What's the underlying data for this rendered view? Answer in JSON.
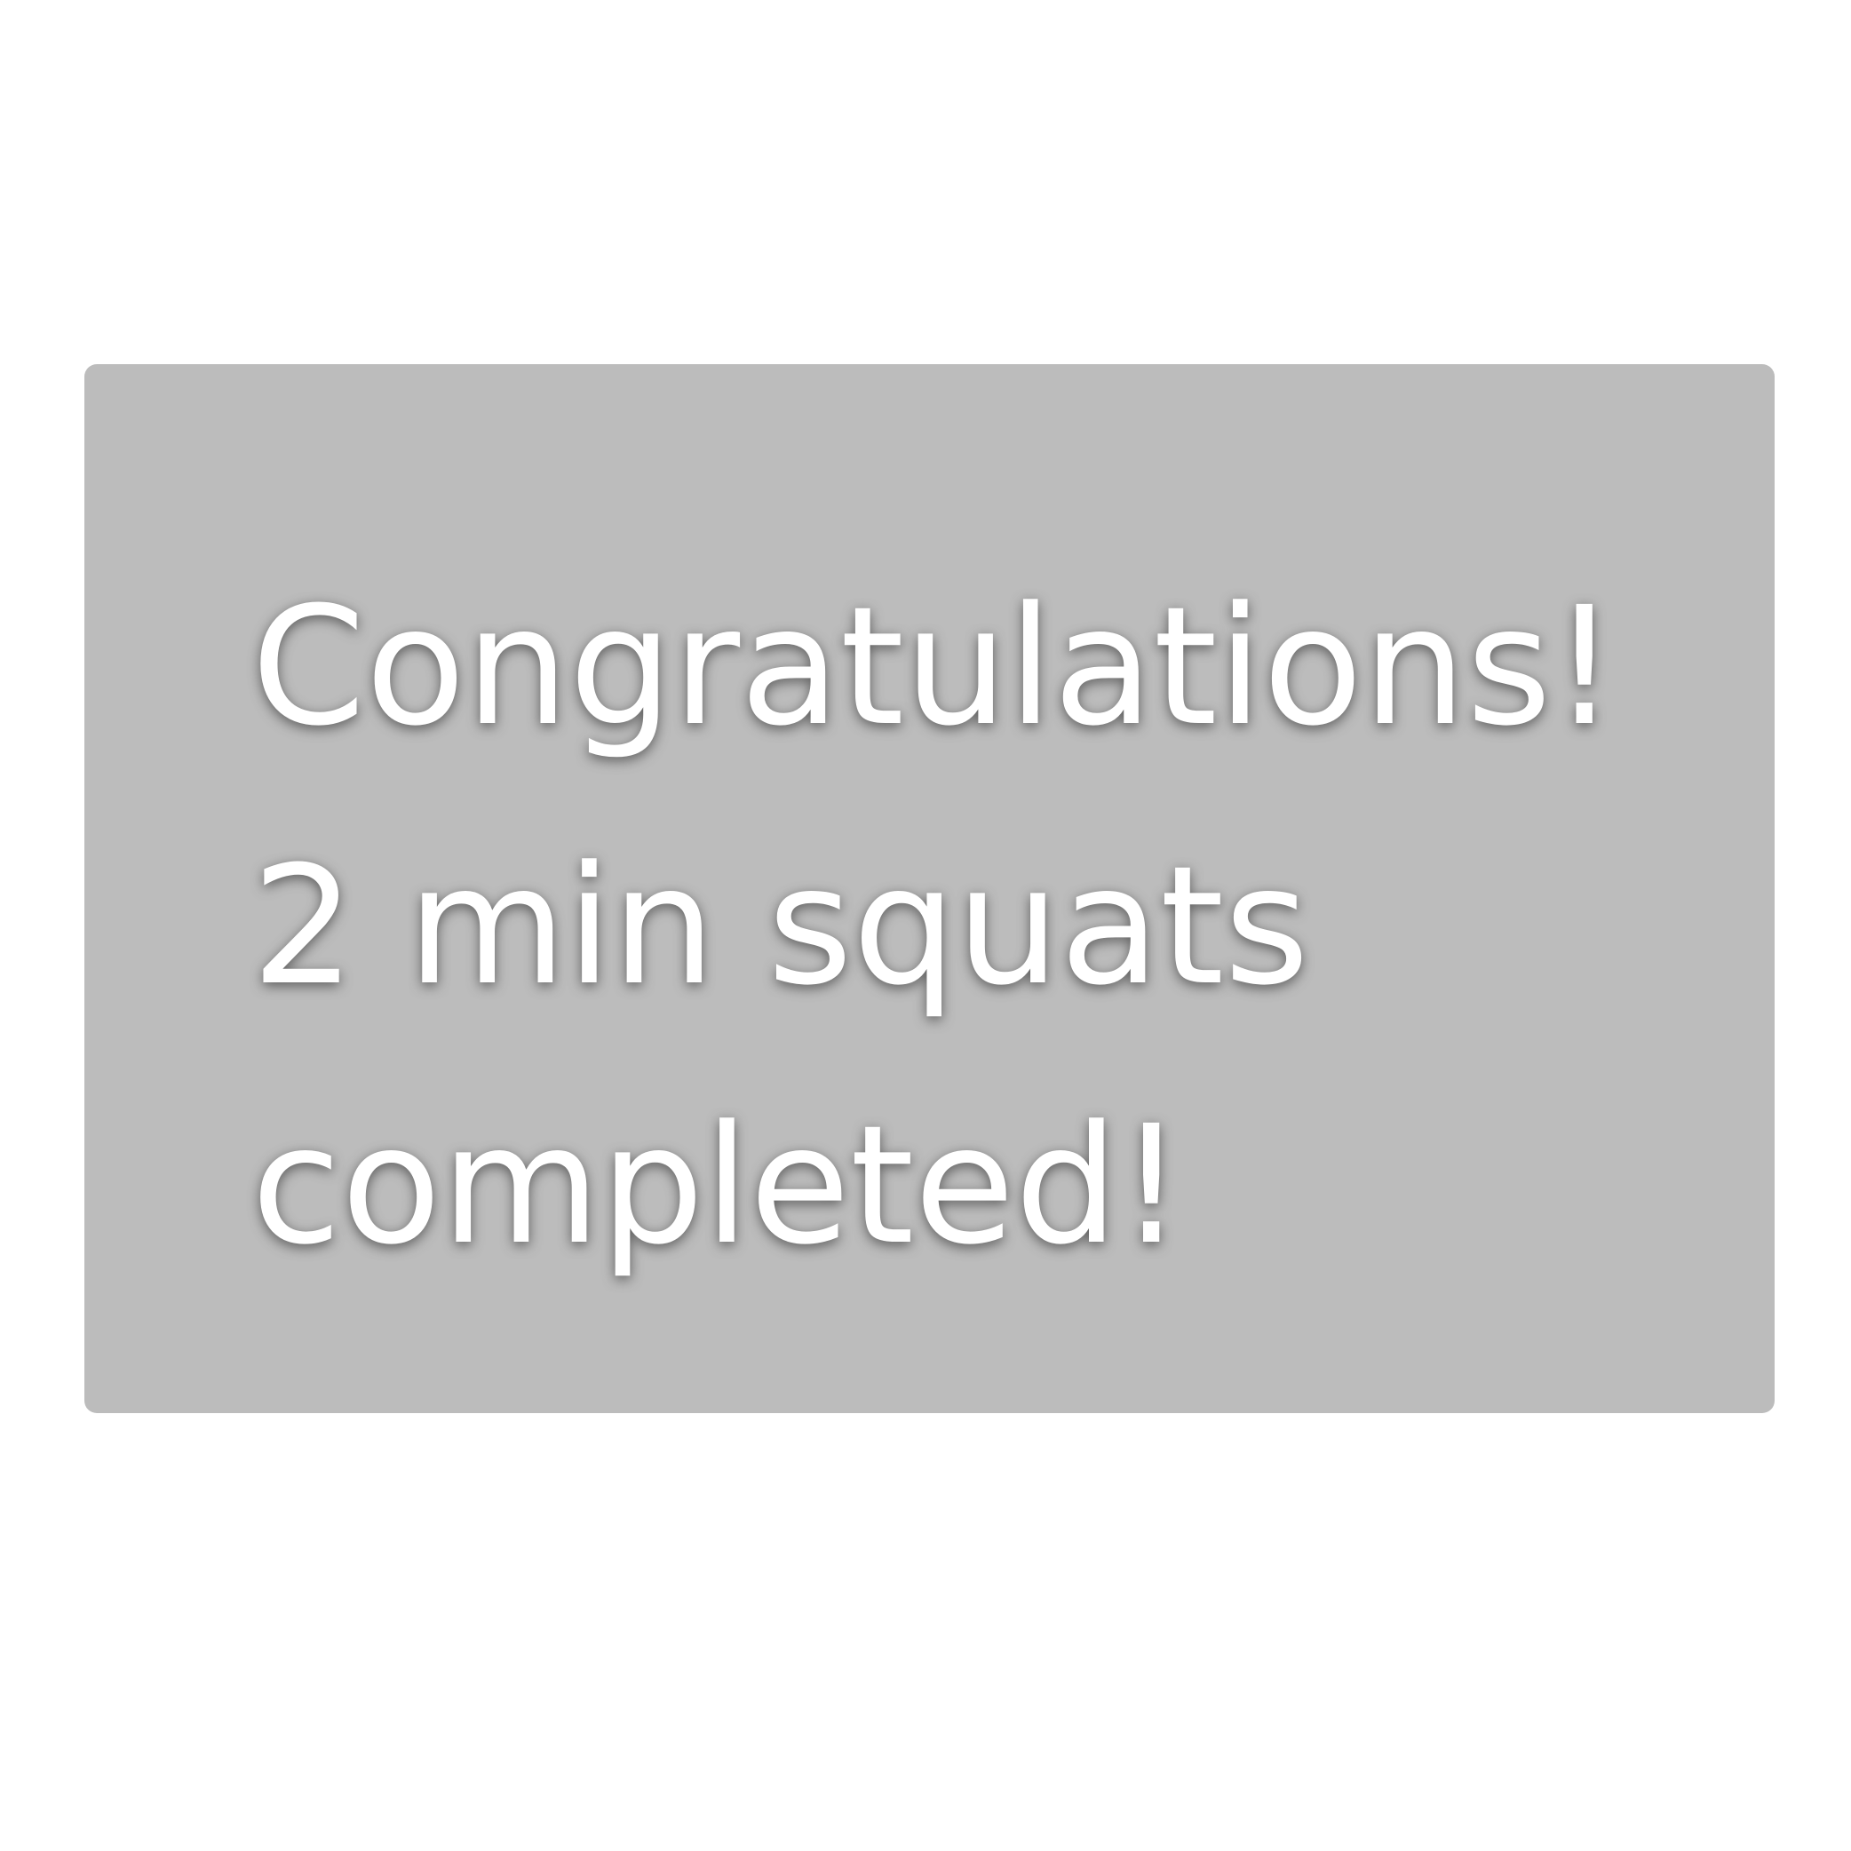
{
  "notification": {
    "line1": "Congratulations!",
    "line2": "2 min squats",
    "line3": "completed!"
  },
  "colors": {
    "page_background": "#ffffff",
    "panel_background": "#bcbcbc",
    "text": "#ffffff"
  }
}
